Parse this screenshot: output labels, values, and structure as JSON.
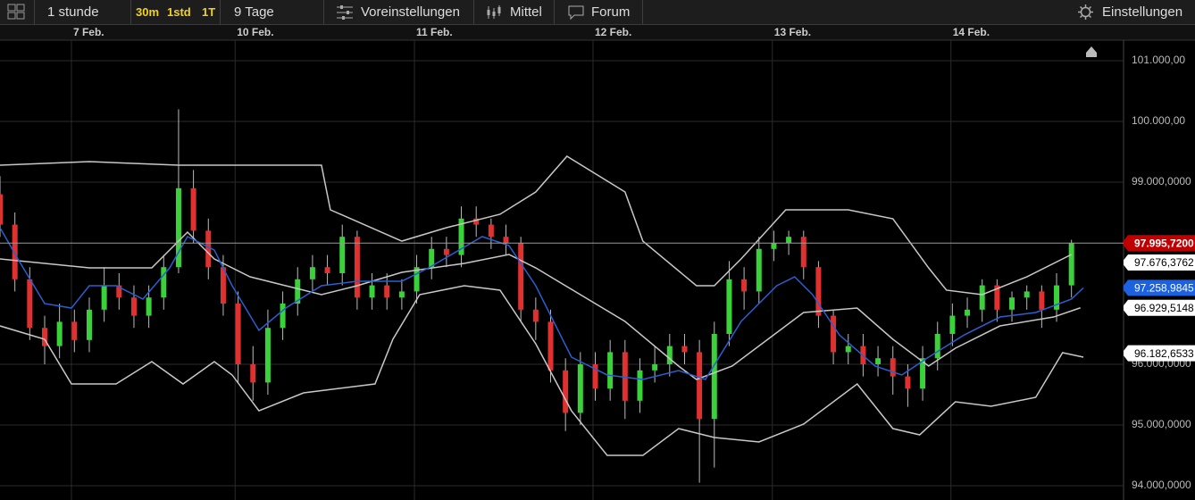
{
  "toolbar": {
    "range": "1 stunde",
    "intervals": [
      "30m",
      "1std",
      "1T"
    ],
    "period": "9 Tage",
    "presets": "Voreinstellungen",
    "indicators": "Mittel",
    "forum": "Forum",
    "settings": "Einstellungen"
  },
  "chart_data": {
    "type": "candlestick",
    "open": [
      98800,
      98300,
      97400,
      96600,
      96300,
      96700,
      96400,
      96900,
      97300,
      97100,
      96800,
      97100,
      97600,
      98900,
      98200,
      97600,
      97000,
      96000,
      95700,
      96600,
      97000,
      97400,
      97600,
      97500,
      98100,
      97100,
      97300,
      97100,
      97200,
      97600,
      97900,
      97800,
      98400,
      98300,
      98100,
      98000,
      96900,
      96700,
      95900,
      95200,
      96000,
      95600,
      96200,
      95400,
      95900,
      96000,
      96300,
      96200,
      95100,
      96500,
      97400,
      97200,
      97900,
      98000,
      98100,
      97600,
      96800,
      96200,
      96300,
      96000,
      96100,
      95800,
      95600,
      96100,
      96500,
      96800,
      96900,
      97300,
      96900,
      97100,
      97200,
      96900,
      97300
    ],
    "high": [
      99100,
      98500,
      97600,
      96800,
      97000,
      96900,
      97100,
      97600,
      97500,
      97300,
      97300,
      97800,
      100200,
      99200,
      98400,
      97800,
      97200,
      96300,
      96900,
      97200,
      97600,
      97800,
      97800,
      98300,
      98200,
      97500,
      97500,
      97400,
      97800,
      98100,
      98100,
      98600,
      98600,
      98400,
      98300,
      98100,
      97100,
      96900,
      96100,
      96200,
      96200,
      96400,
      96400,
      96100,
      96300,
      96500,
      96500,
      96400,
      96700,
      97700,
      97600,
      98100,
      98200,
      98200,
      98200,
      97700,
      96900,
      96500,
      96500,
      96300,
      96300,
      96000,
      96300,
      96700,
      97000,
      97100,
      97400,
      97400,
      97200,
      97300,
      97300,
      97500,
      98050
    ],
    "low": [
      98100,
      97200,
      96400,
      96000,
      96100,
      96200,
      96200,
      96700,
      96900,
      96600,
      96600,
      96900,
      97500,
      98000,
      97400,
      96800,
      95700,
      95400,
      95500,
      96400,
      96800,
      97200,
      97300,
      97300,
      96900,
      96900,
      96900,
      96900,
      97000,
      97400,
      97600,
      97600,
      98100,
      97900,
      97800,
      96700,
      96400,
      95700,
      94900,
      95000,
      95400,
      95400,
      95100,
      95200,
      95700,
      95800,
      96000,
      94050,
      94300,
      96300,
      96900,
      97000,
      97700,
      97800,
      97400,
      96600,
      96000,
      96000,
      95800,
      95800,
      95500,
      95300,
      95400,
      95900,
      96300,
      96600,
      96700,
      96700,
      96700,
      96900,
      96600,
      96700,
      97100
    ],
    "close": [
      98300,
      97400,
      96600,
      96300,
      96700,
      96400,
      96900,
      97300,
      97100,
      96800,
      97100,
      97600,
      98900,
      98200,
      97600,
      97000,
      96000,
      95700,
      96600,
      97000,
      97400,
      97600,
      97500,
      98100,
      97100,
      97300,
      97100,
      97200,
      97600,
      97900,
      97800,
      98400,
      98300,
      98100,
      98000,
      96900,
      96700,
      95900,
      95200,
      96000,
      95600,
      96200,
      95400,
      95900,
      96000,
      96300,
      96200,
      95100,
      96500,
      97400,
      97200,
      97900,
      98000,
      98100,
      97600,
      96800,
      96200,
      96300,
      96000,
      96100,
      95800,
      95600,
      96100,
      96500,
      96800,
      96900,
      97300,
      96900,
      97100,
      97200,
      96900,
      97300,
      97995.72
    ],
    "up_color": "#3ad13a",
    "down_color": "#e03131",
    "xlim": [
      0,
      75.5
    ],
    "ylim": [
      93765,
      101338
    ],
    "xticks": [
      {
        "value": 4.8,
        "label": "7 Feb."
      },
      {
        "value": 15.8,
        "label": "10 Feb."
      },
      {
        "value": 27.85,
        "label": "11 Feb."
      },
      {
        "value": 39.85,
        "label": "12 Feb."
      },
      {
        "value": 51.9,
        "label": "13 Feb."
      },
      {
        "value": 63.9,
        "label": "14 Feb."
      }
    ],
    "yticks": [
      {
        "value": 101000,
        "label": "101.000,00"
      },
      {
        "value": 100000,
        "label": "100.000,00"
      },
      {
        "value": 99000,
        "label": "99.000,0000"
      },
      {
        "value": 96000,
        "label": "96.000,0000"
      },
      {
        "value": 95000,
        "label": "95.000,0000"
      },
      {
        "value": 94000,
        "label": "94.000,0000"
      }
    ],
    "grid": true,
    "lines": [
      {
        "color": "#c8c8c8",
        "x": [
          0,
          6,
          12,
          21.6,
          22.2,
          27,
          30,
          33.6,
          36,
          38.1,
          42,
          43.2,
          46.8,
          48,
          49.8,
          52.8,
          57,
          60,
          62.4,
          63.6,
          66,
          69,
          72
        ],
        "values": [
          99279,
          99338,
          99279,
          99279,
          98544,
          98029,
          98250,
          98471,
          98838,
          99426,
          98838,
          98029,
          97294,
          97294,
          97735,
          98544,
          98544,
          98397,
          97588,
          97221,
          97147,
          97441,
          97809
        ]
      },
      {
        "color": "#c8c8c8",
        "x": [
          0,
          6,
          10.2,
          12.6,
          14.4,
          16.8,
          19.2,
          21.6,
          24,
          27,
          31.2,
          34.2,
          36,
          39,
          42,
          45.6,
          46.8,
          49.2,
          51.6,
          54,
          57.6,
          60,
          62.4,
          64.2,
          67.2,
          70.8,
          72.6
        ],
        "values": [
          97735,
          97588,
          97588,
          98176,
          97735,
          97441,
          97294,
          97147,
          97294,
          97515,
          97662,
          97809,
          97588,
          97147,
          96706,
          95971,
          95750,
          95971,
          96412,
          96853,
          96926,
          96412,
          95971,
          96265,
          96632,
          96779,
          96930
        ]
      },
      {
        "color": "#c8c8c8",
        "x": [
          0,
          3,
          4.8,
          7.8,
          10.2,
          12.3,
          14.4,
          15.6,
          17.4,
          20.4,
          22.8,
          25.2,
          26.4,
          28.2,
          31.2,
          33.6,
          36,
          38.4,
          40.8,
          43.2,
          45.6,
          48,
          51,
          54,
          57.6,
          60,
          61.8,
          64.2,
          66.6,
          69.6,
          71.4,
          72.8
        ],
        "values": [
          96632,
          96412,
          95676,
          95676,
          96044,
          95676,
          96044,
          95824,
          95235,
          95529,
          95603,
          95676,
          96412,
          97147,
          97294,
          97221,
          96338,
          95235,
          94500,
          94500,
          94941,
          94794,
          94721,
          95015,
          95676,
          94941,
          94838,
          95382,
          95309,
          95456,
          96191,
          96118
        ]
      },
      {
        "color": "#2a5fd0",
        "x": [
          0,
          1.2,
          3,
          4.8,
          6,
          7.8,
          9.6,
          11.4,
          12.6,
          14.4,
          15.6,
          17.4,
          19.2,
          21.6,
          24,
          27,
          28.8,
          32.4,
          34.2,
          36,
          38.4,
          40.8,
          43.2,
          45.6,
          47.4,
          49.8,
          52.2,
          53.4,
          54.6,
          56.4,
          58.8,
          60.6,
          62.4,
          64.8,
          67.2,
          69.6,
          72,
          72.8
        ],
        "values": [
          98250,
          97735,
          97000,
          96926,
          97294,
          97294,
          97074,
          97588,
          98103,
          97882,
          97294,
          96559,
          96926,
          97294,
          97368,
          97368,
          97588,
          98103,
          97956,
          97294,
          96118,
          95824,
          95750,
          95897,
          95750,
          96706,
          97294,
          97441,
          97147,
          96485,
          95971,
          95824,
          96118,
          96485,
          96779,
          96853,
          97074,
          97259
        ]
      }
    ],
    "price_line": 97995.72,
    "markers": [
      {
        "value": 97995.72,
        "label": "97.995,7200",
        "color": "#c00000"
      },
      {
        "value": 97676.3762,
        "label": "97.676,3762",
        "color": "#ffffff"
      },
      {
        "value": 97258.9845,
        "label": "97.258,9845",
        "color": "#1c62e0"
      },
      {
        "value": 96929.5148,
        "label": "96.929,5148",
        "color": "#ffffff"
      },
      {
        "value": 96182.6533,
        "label": "96.182,6533",
        "color": "#ffffff"
      }
    ]
  }
}
